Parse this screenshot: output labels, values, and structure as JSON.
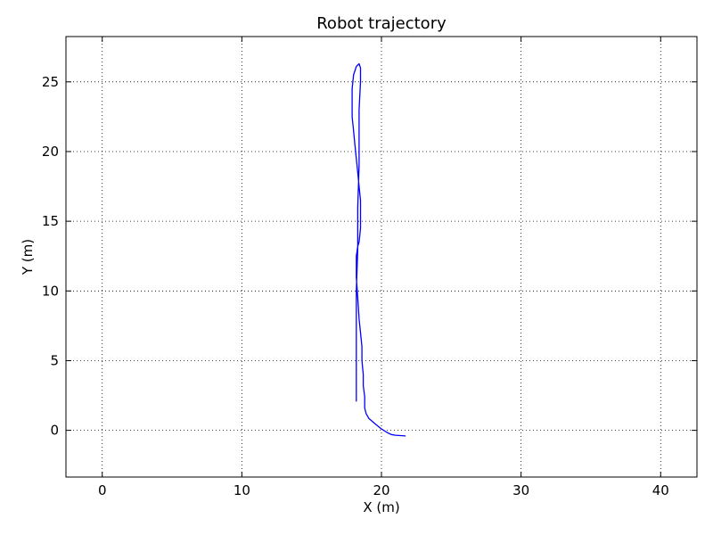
{
  "chart_data": {
    "type": "line",
    "title": "Robot trajectory",
    "xlabel": "X (m)",
    "ylabel": "Y (m)",
    "xlim": [
      -2.6,
      42.6
    ],
    "ylim": [
      -3.35,
      28.25
    ],
    "x_ticks": [
      0,
      10,
      20,
      30,
      40
    ],
    "y_ticks": [
      0,
      5,
      10,
      15,
      20,
      25
    ],
    "x_tick_labels": [
      "0",
      "10",
      "20",
      "30",
      "40"
    ],
    "y_tick_labels": [
      "0",
      "5",
      "10",
      "15",
      "20",
      "25"
    ],
    "grid": true,
    "colors": {
      "series": "#0000ff"
    },
    "series": [
      {
        "x": [
          21.7,
          21.0,
          20.7,
          20.4,
          20.0,
          19.5,
          19.1,
          18.9,
          18.8,
          18.8,
          18.7,
          18.7,
          18.6,
          18.6,
          18.5,
          18.4,
          18.3,
          18.2,
          18.2,
          18.3,
          18.4,
          18.5,
          18.5,
          18.5,
          18.4,
          18.3,
          18.2,
          18.1,
          18.0,
          17.9,
          17.9,
          17.9,
          18.0,
          18.2,
          18.4,
          18.5,
          18.5,
          18.4,
          18.4,
          18.4,
          18.3,
          18.3,
          18.2,
          18.2,
          18.2
        ],
        "y": [
          -0.4,
          -0.35,
          -0.3,
          -0.15,
          0.1,
          0.5,
          0.85,
          1.2,
          1.6,
          2.4,
          3.2,
          4.0,
          5.0,
          6.0,
          7.0,
          8.0,
          9.5,
          11.0,
          12.5,
          13.2,
          13.5,
          14.5,
          15.5,
          16.5,
          17.5,
          18.5,
          19.5,
          20.5,
          21.5,
          22.5,
          23.5,
          24.5,
          25.5,
          26.1,
          26.3,
          26.0,
          25.0,
          23.0,
          21.0,
          19.0,
          16.0,
          13.0,
          10.0,
          6.0,
          2.1
        ]
      }
    ]
  }
}
